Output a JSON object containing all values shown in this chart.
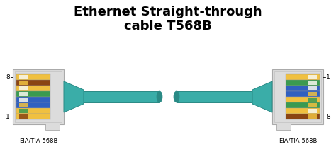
{
  "title_line1": "Ethernet Straight-through",
  "title_line2": "cable T568B",
  "title_fontsize": 13,
  "bg_color": "#ffffff",
  "cable_color": "#3aada8",
  "cable_edge_color": "#2a8a85",
  "connector_face": "#dcdcdc",
  "connector_edge": "#aaaaaa",
  "wire_face_white": "#f8f8f0",
  "label_left_top": "8",
  "label_left_bottom": "1",
  "label_right_top": "1",
  "label_right_bottom": "8",
  "connector_label": "EIA/TIA-568B",
  "left_wires": [
    [
      "#f0c040",
      "#f8f8f0"
    ],
    [
      "#8B4513",
      "#f0c040"
    ],
    [
      "#f0c040",
      "#f8f8f0"
    ],
    [
      "#3a9a50",
      "#f8f8f0"
    ],
    [
      "#3060c0",
      "#f8f8f0"
    ],
    [
      "#3060c0",
      "#f0c040"
    ],
    [
      "#f0c040",
      "#3a9a50"
    ],
    [
      "#f0c040",
      "#8B4513"
    ]
  ],
  "right_wires": [
    [
      "#f0c040",
      "#f8f8f0"
    ],
    [
      "#3a9a50",
      "#f8f8f0"
    ],
    [
      "#3060c0",
      "#f8f8f0"
    ],
    [
      "#3060c0",
      "#f0c040"
    ],
    [
      "#f0c040",
      "#3a9a50"
    ],
    [
      "#3a9a50",
      "#f0c040"
    ],
    [
      "#f0c040",
      "#f8f8f0"
    ],
    [
      "#8B4513",
      "#f0c040"
    ]
  ],
  "fig_w": 4.74,
  "fig_h": 2.26,
  "dpi": 100
}
